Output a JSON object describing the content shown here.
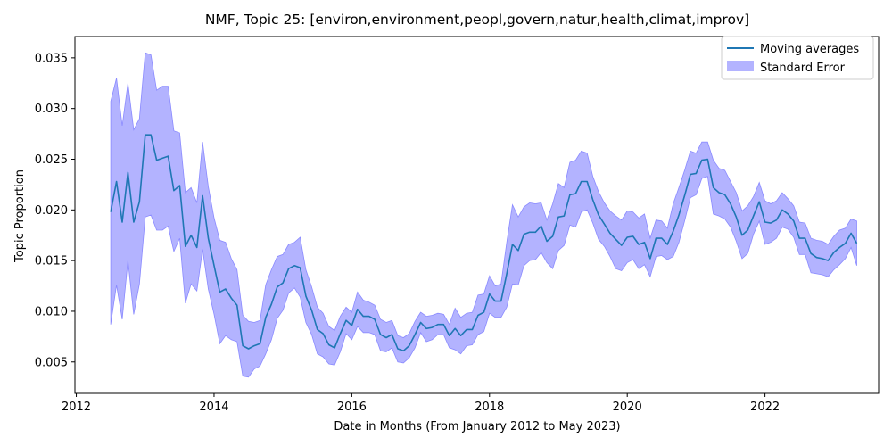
{
  "chart_data": {
    "type": "line",
    "title": "NMF, Topic 25: [environ,environment,peopl,govern,natur,health,climat,improv]",
    "xlabel": "Date in Months (From January 2012 to May 2023)",
    "ylabel": "Topic Proportion",
    "xlim": [
      2011.98,
      2023.65
    ],
    "ylim": [
      0.0019,
      0.0371
    ],
    "x_ticks": [
      2012,
      2014,
      2016,
      2018,
      2020,
      2022
    ],
    "y_ticks": [
      0.005,
      0.01,
      0.015,
      0.02,
      0.025,
      0.03,
      0.035
    ],
    "y_tick_labels": [
      "0.005",
      "0.010",
      "0.015",
      "0.020",
      "0.025",
      "0.030",
      "0.035"
    ],
    "grid": false,
    "legend_position": "top-right",
    "legend": [
      {
        "label": "Moving averages",
        "kind": "line",
        "color": "#1f77b4"
      },
      {
        "label": "Standard Error",
        "kind": "band",
        "color": "#b3b3ff"
      }
    ],
    "line_color": "#1f77b4",
    "band_color": "#b3b3ff",
    "band_edge_color": "#8a8aff",
    "series": [
      {
        "kind": "moving-average",
        "x": [
          2012.5,
          2012.583,
          2012.667,
          2012.75,
          2012.833,
          2012.917,
          2013.0,
          2013.083,
          2013.167,
          2013.25,
          2013.333,
          2013.417,
          2013.5,
          2013.583,
          2013.667,
          2013.75,
          2013.833,
          2013.917,
          2014.0,
          2014.083,
          2014.167,
          2014.25,
          2014.333,
          2014.417,
          2014.5,
          2014.583,
          2014.667,
          2014.75,
          2014.833,
          2014.917,
          2015.0,
          2015.083,
          2015.167,
          2015.25,
          2015.333,
          2015.417,
          2015.5,
          2015.583,
          2015.667,
          2015.75,
          2015.833,
          2015.917,
          2016.0,
          2016.083,
          2016.167,
          2016.25,
          2016.333,
          2016.417,
          2016.5,
          2016.583,
          2016.667,
          2016.75,
          2016.833,
          2016.917,
          2017.0,
          2017.083,
          2017.167,
          2017.25,
          2017.333,
          2017.417,
          2017.5,
          2017.583,
          2017.667,
          2017.75,
          2017.833,
          2017.917,
          2018.0,
          2018.083,
          2018.167,
          2018.25,
          2018.333,
          2018.417,
          2018.5,
          2018.583,
          2018.667,
          2018.75,
          2018.833,
          2018.917,
          2019.0,
          2019.083,
          2019.167,
          2019.25,
          2019.333,
          2019.417,
          2019.5,
          2019.583,
          2019.667,
          2019.75,
          2019.833,
          2019.917,
          2020.0,
          2020.083,
          2020.167,
          2020.25,
          2020.333,
          2020.417,
          2020.5,
          2020.583,
          2020.667,
          2020.75,
          2020.833,
          2020.917,
          2021.0,
          2021.083,
          2021.167,
          2021.25,
          2021.333,
          2021.417,
          2021.5,
          2021.583,
          2021.667,
          2021.75,
          2021.833,
          2021.917,
          2022.0,
          2022.083,
          2022.167,
          2022.25,
          2022.333,
          2022.417,
          2022.5,
          2022.583,
          2022.667,
          2022.75,
          2022.833,
          2022.917,
          2023.0,
          2023.083,
          2023.167,
          2023.25,
          2023.333
        ],
        "y": [
          0.0198,
          0.0228,
          0.0188,
          0.0237,
          0.0188,
          0.0208,
          0.0274,
          0.0274,
          0.0249,
          0.0251,
          0.0253,
          0.0219,
          0.0224,
          0.0164,
          0.0175,
          0.0163,
          0.0214,
          0.0172,
          0.0145,
          0.0119,
          0.0122,
          0.0113,
          0.0106,
          0.0066,
          0.0063,
          0.0066,
          0.0068,
          0.0094,
          0.0107,
          0.0124,
          0.0128,
          0.0142,
          0.0145,
          0.0143,
          0.0115,
          0.0101,
          0.0082,
          0.0078,
          0.0067,
          0.0064,
          0.0078,
          0.0091,
          0.0086,
          0.0102,
          0.0095,
          0.0095,
          0.0092,
          0.0077,
          0.0074,
          0.0077,
          0.0063,
          0.0061,
          0.0066,
          0.0077,
          0.0089,
          0.0083,
          0.0084,
          0.0087,
          0.0087,
          0.0076,
          0.0083,
          0.0076,
          0.0082,
          0.0082,
          0.0096,
          0.0099,
          0.0117,
          0.011,
          0.011,
          0.0137,
          0.0166,
          0.016,
          0.0176,
          0.0178,
          0.0178,
          0.0184,
          0.0169,
          0.0174,
          0.0193,
          0.0194,
          0.0215,
          0.0216,
          0.0228,
          0.0228,
          0.021,
          0.0195,
          0.0186,
          0.0177,
          0.0171,
          0.0165,
          0.0173,
          0.0174,
          0.0166,
          0.0168,
          0.0152,
          0.0172,
          0.0172,
          0.0166,
          0.0179,
          0.0195,
          0.0214,
          0.0235,
          0.0236,
          0.0249,
          0.025,
          0.0222,
          0.0217,
          0.0215,
          0.0206,
          0.0193,
          0.0175,
          0.018,
          0.0194,
          0.0208,
          0.0188,
          0.0187,
          0.019,
          0.02,
          0.0196,
          0.0189,
          0.0172,
          0.0172,
          0.0157,
          0.0153,
          0.0152,
          0.015,
          0.0158,
          0.0163,
          0.0167,
          0.0177,
          0.0167
        ]
      },
      {
        "kind": "standard-error-upper",
        "y": [
          0.0307,
          0.033,
          0.0283,
          0.0325,
          0.0279,
          0.029,
          0.0355,
          0.0353,
          0.0318,
          0.0322,
          0.0322,
          0.0278,
          0.0276,
          0.0217,
          0.0222,
          0.0207,
          0.0267,
          0.0223,
          0.0192,
          0.017,
          0.0168,
          0.0152,
          0.0141,
          0.0096,
          0.009,
          0.0089,
          0.0091,
          0.0126,
          0.0141,
          0.0154,
          0.0156,
          0.0166,
          0.0168,
          0.0173,
          0.0141,
          0.0124,
          0.0104,
          0.0098,
          0.0085,
          0.0081,
          0.0095,
          0.0104,
          0.0099,
          0.0119,
          0.0111,
          0.0109,
          0.0106,
          0.0092,
          0.0089,
          0.0091,
          0.0076,
          0.0074,
          0.0078,
          0.009,
          0.0099,
          0.0095,
          0.0096,
          0.0098,
          0.0097,
          0.0087,
          0.0103,
          0.0094,
          0.0098,
          0.0099,
          0.0116,
          0.0117,
          0.0135,
          0.0125,
          0.0127,
          0.0168,
          0.0205,
          0.0193,
          0.0203,
          0.0207,
          0.0206,
          0.0207,
          0.019,
          0.0206,
          0.0226,
          0.0222,
          0.0247,
          0.0249,
          0.0258,
          0.0256,
          0.0233,
          0.0218,
          0.0207,
          0.0199,
          0.0194,
          0.019,
          0.0199,
          0.0198,
          0.0192,
          0.0196,
          0.0172,
          0.019,
          0.0189,
          0.0182,
          0.0206,
          0.0222,
          0.0239,
          0.0258,
          0.0256,
          0.0267,
          0.0267,
          0.0249,
          0.0241,
          0.0239,
          0.0228,
          0.0217,
          0.0199,
          0.0204,
          0.0213,
          0.0227,
          0.0209,
          0.0206,
          0.0209,
          0.0217,
          0.0211,
          0.0204,
          0.0188,
          0.0187,
          0.0172,
          0.017,
          0.0169,
          0.0166,
          0.0174,
          0.018,
          0.0182,
          0.0191,
          0.0189
        ]
      },
      {
        "kind": "standard-error-lower",
        "y": [
          0.0087,
          0.0126,
          0.0092,
          0.015,
          0.0097,
          0.0127,
          0.0193,
          0.0195,
          0.018,
          0.018,
          0.0184,
          0.0159,
          0.0172,
          0.0108,
          0.0127,
          0.012,
          0.0161,
          0.0122,
          0.0097,
          0.0068,
          0.0076,
          0.0072,
          0.007,
          0.0036,
          0.0035,
          0.0043,
          0.0046,
          0.0058,
          0.0072,
          0.0093,
          0.0101,
          0.0118,
          0.0123,
          0.0114,
          0.0089,
          0.0077,
          0.0058,
          0.0055,
          0.0048,
          0.0047,
          0.006,
          0.0078,
          0.0072,
          0.0085,
          0.0079,
          0.0079,
          0.0077,
          0.0061,
          0.006,
          0.0064,
          0.005,
          0.0049,
          0.0054,
          0.0064,
          0.0079,
          0.007,
          0.0072,
          0.0077,
          0.0077,
          0.0064,
          0.0062,
          0.0058,
          0.0066,
          0.0067,
          0.0077,
          0.008,
          0.0098,
          0.0094,
          0.0094,
          0.0104,
          0.0127,
          0.0126,
          0.0145,
          0.015,
          0.0151,
          0.0158,
          0.0148,
          0.0142,
          0.016,
          0.0165,
          0.0185,
          0.0183,
          0.0198,
          0.02,
          0.0187,
          0.0171,
          0.0164,
          0.0154,
          0.0142,
          0.014,
          0.0148,
          0.0151,
          0.0142,
          0.0146,
          0.0134,
          0.0154,
          0.0155,
          0.0151,
          0.0154,
          0.0168,
          0.0189,
          0.0212,
          0.0215,
          0.0231,
          0.0233,
          0.0196,
          0.0194,
          0.0191,
          0.0183,
          0.0169,
          0.0152,
          0.0157,
          0.0176,
          0.0189,
          0.0166,
          0.0168,
          0.0172,
          0.0183,
          0.0181,
          0.0173,
          0.0156,
          0.0156,
          0.0138,
          0.0137,
          0.0136,
          0.0134,
          0.0141,
          0.0146,
          0.0152,
          0.0163,
          0.0145
        ]
      }
    ]
  }
}
